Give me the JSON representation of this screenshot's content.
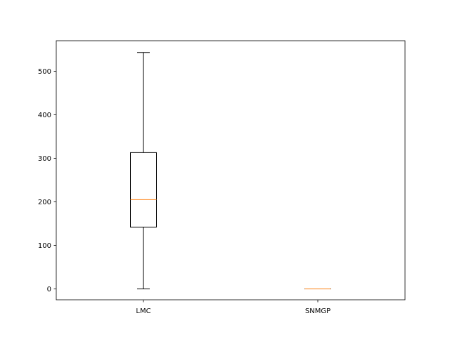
{
  "chart_data": {
    "type": "box",
    "title": "",
    "xlabel": "",
    "ylabel": "",
    "categories": [
      "LMC",
      "SNMGP"
    ],
    "ylim": [
      -25,
      570
    ],
    "yticks": [
      0,
      100,
      200,
      300,
      400,
      500
    ],
    "yticklabels": [
      "0",
      "100",
      "200",
      "300",
      "400",
      "500"
    ],
    "grid": false,
    "boxes": [
      {
        "name": "LMC",
        "whisker_low": 0,
        "q1": 142,
        "median": 205,
        "q3": 313,
        "whisker_high": 543
      },
      {
        "name": "SNMGP",
        "whisker_low": 0,
        "q1": 0,
        "median": 0,
        "q3": 0,
        "whisker_high": 0
      }
    ],
    "colors": {
      "box": "#000000",
      "median": "#ff7f0e",
      "axes": "#000000"
    }
  }
}
